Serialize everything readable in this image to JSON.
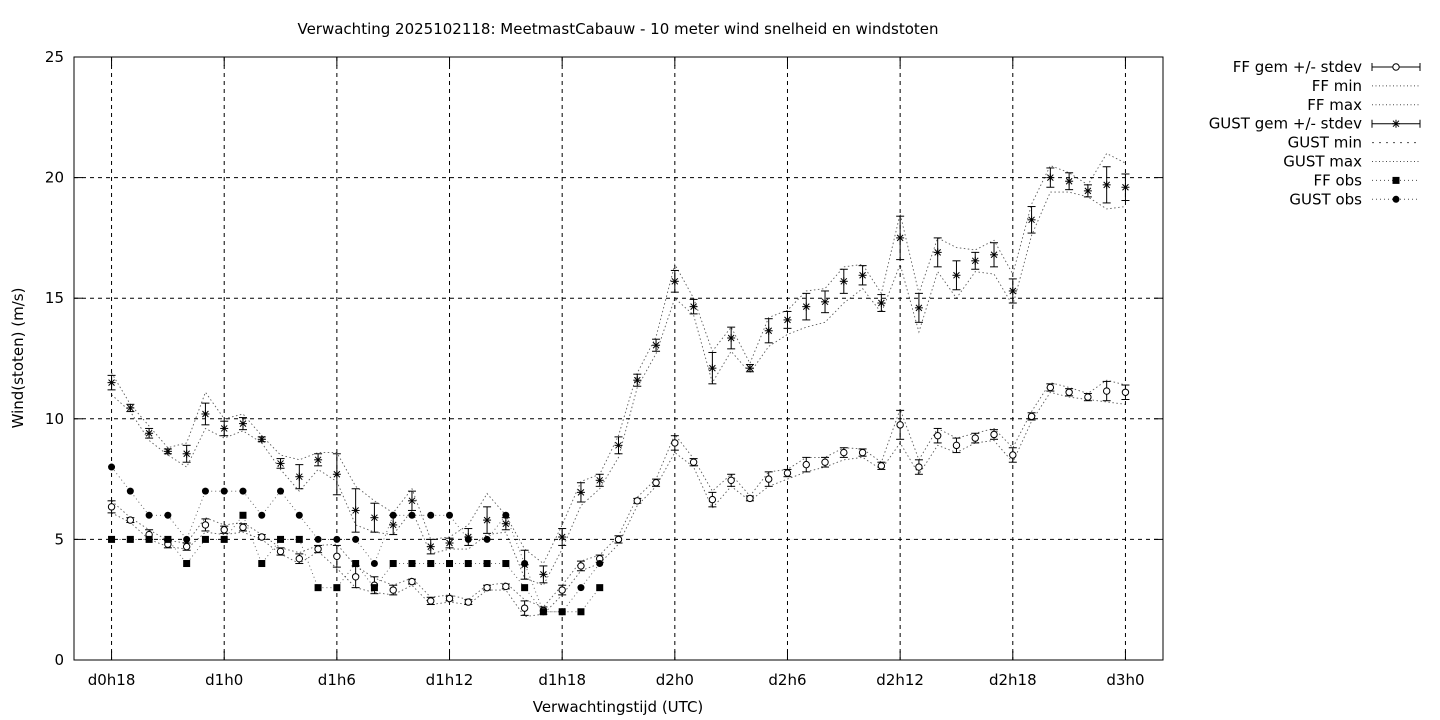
{
  "chart_data": {
    "type": "line",
    "title": "Verwachting 2025102118: MeetmastCabauw - 10 meter wind snelheid en windstoten",
    "xlabel": "Verwachtingstijd (UTC)",
    "ylabel": "Wind(stoten) (m/s)",
    "x_units": "hours since d0h18",
    "xlim": [
      -2,
      56
    ],
    "ylim": [
      0,
      25
    ],
    "xticks": [
      {
        "x": 0,
        "label": "d0h18"
      },
      {
        "x": 6,
        "label": "d1h0"
      },
      {
        "x": 12,
        "label": "d1h6"
      },
      {
        "x": 18,
        "label": "d1h12"
      },
      {
        "x": 24,
        "label": "d1h18"
      },
      {
        "x": 30,
        "label": "d2h0"
      },
      {
        "x": 36,
        "label": "d2h6"
      },
      {
        "x": 42,
        "label": "d2h12"
      },
      {
        "x": 48,
        "label": "d2h18"
      },
      {
        "x": 54,
        "label": "d3h0"
      }
    ],
    "yticks": [
      0,
      5,
      10,
      15,
      20,
      25
    ],
    "grid": "dashed at major ticks",
    "legend_position": "right, outside plot",
    "legend": [
      "FF gem +/- stdev",
      "FF min",
      "FF max",
      "GUST gem +/- stdev",
      "GUST min",
      "GUST max",
      "FF obs",
      "GUST obs"
    ],
    "x": [
      0,
      1,
      2,
      3,
      4,
      5,
      6,
      7,
      8,
      9,
      10,
      11,
      12,
      13,
      14,
      15,
      16,
      17,
      18,
      19,
      20,
      21,
      22,
      23,
      24,
      25,
      26,
      27,
      28,
      29,
      30,
      31,
      32,
      33,
      34,
      35,
      36,
      37,
      38,
      39,
      40,
      41,
      42,
      43,
      44,
      45,
      46,
      47,
      48,
      49,
      50,
      51,
      52,
      53,
      54
    ],
    "series": [
      {
        "name": "FF gem +/- stdev",
        "marker": "open-circle",
        "mean": [
          6.35,
          5.8,
          5.2,
          4.8,
          4.7,
          5.6,
          5.4,
          5.5,
          5.1,
          4.5,
          4.2,
          4.6,
          4.3,
          3.45,
          3.1,
          2.9,
          3.25,
          2.45,
          2.55,
          2.4,
          3.0,
          3.05,
          2.15,
          2.05,
          2.9,
          3.9,
          4.2,
          5.0,
          6.6,
          7.35,
          9.0,
          8.2,
          6.65,
          7.45,
          6.7,
          7.5,
          7.75,
          8.1,
          8.2,
          8.6,
          8.6,
          8.05,
          9.75,
          8.0,
          9.3,
          8.9,
          9.2,
          9.35,
          8.5,
          10.1,
          11.3,
          11.1,
          10.9,
          11.15,
          11.1
        ],
        "stdev": [
          0.25,
          0.1,
          0.2,
          0.15,
          0.15,
          0.25,
          0.15,
          0.15,
          0.1,
          0.15,
          0.2,
          0.15,
          0.45,
          0.45,
          0.35,
          0.2,
          0.1,
          0.15,
          0.1,
          0.1,
          0.1,
          0.1,
          0.3,
          0.15,
          0.2,
          0.2,
          0.15,
          0.15,
          0.1,
          0.15,
          0.3,
          0.15,
          0.3,
          0.25,
          0.1,
          0.3,
          0.15,
          0.3,
          0.2,
          0.2,
          0.15,
          0.15,
          0.6,
          0.3,
          0.3,
          0.3,
          0.2,
          0.2,
          0.3,
          0.15,
          0.15,
          0.15,
          0.15,
          0.4,
          0.3
        ]
      },
      {
        "name": "FF min",
        "style": "dotted",
        "values": [
          6.1,
          5.7,
          5.0,
          4.7,
          4.6,
          5.3,
          5.2,
          5.3,
          5.0,
          4.4,
          4.0,
          4.5,
          3.8,
          3.0,
          2.8,
          2.7,
          3.1,
          2.3,
          2.4,
          2.3,
          2.9,
          2.9,
          1.8,
          1.9,
          2.7,
          3.7,
          4.0,
          4.8,
          6.4,
          7.2,
          8.6,
          8.0,
          6.3,
          7.2,
          6.6,
          7.2,
          7.5,
          7.8,
          8.0,
          8.3,
          8.4,
          7.9,
          9.0,
          7.7,
          8.9,
          8.6,
          9.0,
          9.1,
          8.2,
          9.9,
          11.1,
          10.9,
          10.8,
          10.7,
          10.6
        ]
      },
      {
        "name": "FF max",
        "style": "dotted",
        "values": [
          6.6,
          5.9,
          5.4,
          4.95,
          4.85,
          5.9,
          5.6,
          5.7,
          5.2,
          4.65,
          4.45,
          4.75,
          4.8,
          3.9,
          3.4,
          3.1,
          3.4,
          2.6,
          2.7,
          2.5,
          3.1,
          3.2,
          2.5,
          2.2,
          3.1,
          4.1,
          4.35,
          5.15,
          6.75,
          7.5,
          9.35,
          8.35,
          7.0,
          7.7,
          6.8,
          7.8,
          7.9,
          8.4,
          8.4,
          8.8,
          8.75,
          8.2,
          10.4,
          8.3,
          9.6,
          9.2,
          9.4,
          9.6,
          8.8,
          10.3,
          11.5,
          11.3,
          11.05,
          11.6,
          11.4
        ]
      },
      {
        "name": "GUST gem +/- stdev",
        "marker": "star",
        "mean": [
          11.5,
          10.45,
          9.4,
          8.65,
          8.55,
          10.2,
          9.6,
          9.8,
          9.15,
          8.15,
          7.6,
          8.3,
          7.7,
          6.2,
          5.9,
          5.6,
          6.6,
          4.7,
          4.85,
          5.1,
          5.8,
          5.65,
          3.95,
          3.55,
          5.1,
          6.95,
          7.45,
          8.9,
          11.6,
          13.05,
          15.7,
          14.65,
          12.1,
          13.35,
          12.1,
          13.65,
          14.1,
          14.65,
          14.85,
          15.7,
          15.95,
          14.8,
          17.5,
          14.6,
          16.9,
          15.95,
          16.55,
          16.8,
          15.3,
          18.25,
          20.0,
          19.85,
          19.45,
          19.7,
          19.6
        ],
        "stdev": [
          0.3,
          0.15,
          0.2,
          0.1,
          0.35,
          0.45,
          0.3,
          0.25,
          0.1,
          0.2,
          0.5,
          0.25,
          0.85,
          0.9,
          0.6,
          0.4,
          0.4,
          0.3,
          0.2,
          0.35,
          0.55,
          0.25,
          0.6,
          0.35,
          0.35,
          0.4,
          0.25,
          0.35,
          0.25,
          0.25,
          0.45,
          0.3,
          0.65,
          0.45,
          0.15,
          0.5,
          0.35,
          0.55,
          0.45,
          0.5,
          0.4,
          0.35,
          0.9,
          0.6,
          0.6,
          0.6,
          0.35,
          0.5,
          0.5,
          0.55,
          0.4,
          0.35,
          0.25,
          0.75,
          0.55
        ]
      },
      {
        "name": "GUST min",
        "style": "dotted",
        "values": [
          11.0,
          10.3,
          9.1,
          8.5,
          8.0,
          9.6,
          9.2,
          9.5,
          9.0,
          7.9,
          7.0,
          7.9,
          7.4,
          5.6,
          5.3,
          5.2,
          6.2,
          4.4,
          4.6,
          4.6,
          5.2,
          5.3,
          3.4,
          3.1,
          4.6,
          6.4,
          7.1,
          8.4,
          11.3,
          12.7,
          15.0,
          14.3,
          11.5,
          12.8,
          11.9,
          13.0,
          13.5,
          13.8,
          14.0,
          14.8,
          15.4,
          14.4,
          16.4,
          13.6,
          16.1,
          15.0,
          16.1,
          16.0,
          14.7,
          17.6,
          19.4,
          19.4,
          19.2,
          18.7,
          18.8
        ]
      },
      {
        "name": "GUST max",
        "style": "dotted",
        "values": [
          11.9,
          10.6,
          9.7,
          8.8,
          9.0,
          11.1,
          10.0,
          10.2,
          9.3,
          8.5,
          8.3,
          8.6,
          8.6,
          7.2,
          6.6,
          6.1,
          7.1,
          5.0,
          5.1,
          5.6,
          6.9,
          6.0,
          4.6,
          4.0,
          5.6,
          7.4,
          7.7,
          9.3,
          11.9,
          13.4,
          16.4,
          15.0,
          12.8,
          13.8,
          12.3,
          14.2,
          14.5,
          15.3,
          15.4,
          16.3,
          16.4,
          15.2,
          18.5,
          15.2,
          17.5,
          17.1,
          17.0,
          17.4,
          16.0,
          18.9,
          20.5,
          20.2,
          19.7,
          21.0,
          20.6
        ]
      },
      {
        "name": "FF obs",
        "marker": "filled-square",
        "x": [
          0,
          1,
          2,
          3,
          4,
          5,
          6,
          7,
          8,
          9,
          10,
          11,
          12,
          13,
          14,
          15,
          16,
          17,
          18,
          19,
          20,
          21,
          22,
          23,
          24,
          25,
          26
        ],
        "values": [
          5,
          5,
          5,
          5,
          4,
          5,
          5,
          6,
          4,
          5,
          5,
          3,
          3,
          4,
          3,
          4,
          4,
          4,
          4,
          4,
          4,
          4,
          3,
          2,
          2,
          2,
          3
        ]
      },
      {
        "name": "GUST obs",
        "marker": "filled-circle",
        "x": [
          0,
          1,
          2,
          3,
          4,
          5,
          6,
          7,
          8,
          9,
          10,
          11,
          12,
          13,
          14,
          15,
          16,
          17,
          18,
          19,
          20,
          21,
          22,
          23,
          24,
          25,
          26
        ],
        "values": [
          8,
          7,
          6,
          6,
          5,
          7,
          7,
          7,
          6,
          7,
          6,
          5,
          5,
          5,
          4,
          6,
          6,
          6,
          6,
          5,
          5,
          6,
          4,
          2,
          2,
          3,
          4
        ]
      }
    ]
  }
}
